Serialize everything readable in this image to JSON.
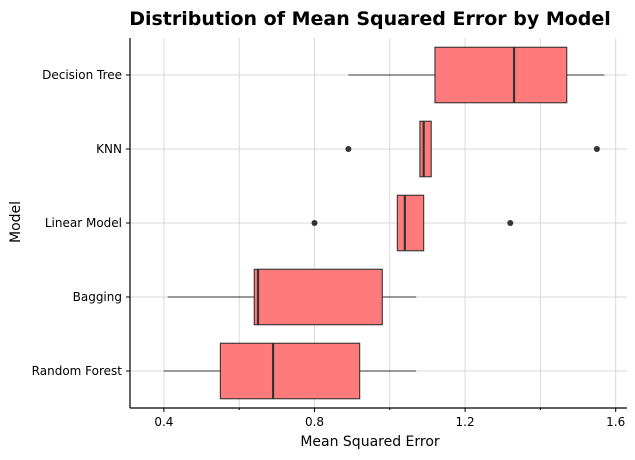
{
  "chart_data": {
    "type": "boxplot",
    "orientation": "horizontal",
    "title": "Distribution of Mean Squared Error by Model",
    "xlabel": "Mean Squared Error",
    "ylabel": "Model",
    "xlim": [
      0.31,
      1.63
    ],
    "xticks": [
      0.4,
      0.8,
      1.2,
      1.6
    ],
    "xtick_labels": [
      "0.4",
      "0.8",
      "1.2",
      "1.6"
    ],
    "grid": true,
    "box_color": "#ff7b7b",
    "edge_color": "#333333",
    "categories": [
      "Decision Tree",
      "KNN",
      "Linear Model",
      "Bagging",
      "Random Forest"
    ],
    "series": [
      {
        "name": "Decision Tree",
        "whislo": 0.89,
        "q1": 1.12,
        "med": 1.33,
        "q3": 1.47,
        "whishi": 1.57,
        "fliers": []
      },
      {
        "name": "KNN",
        "whislo": 1.08,
        "q1": 1.08,
        "med": 1.09,
        "q3": 1.11,
        "whishi": 1.11,
        "fliers": [
          0.89,
          1.55
        ]
      },
      {
        "name": "Linear Model",
        "whislo": 1.02,
        "q1": 1.02,
        "med": 1.04,
        "q3": 1.09,
        "whishi": 1.09,
        "fliers": [
          0.8,
          1.32
        ]
      },
      {
        "name": "Bagging",
        "whislo": 0.41,
        "q1": 0.64,
        "med": 0.65,
        "q3": 0.98,
        "whishi": 1.07,
        "fliers": []
      },
      {
        "name": "Random Forest",
        "whislo": 0.4,
        "q1": 0.55,
        "med": 0.69,
        "q3": 0.92,
        "whishi": 1.07,
        "fliers": []
      }
    ]
  }
}
